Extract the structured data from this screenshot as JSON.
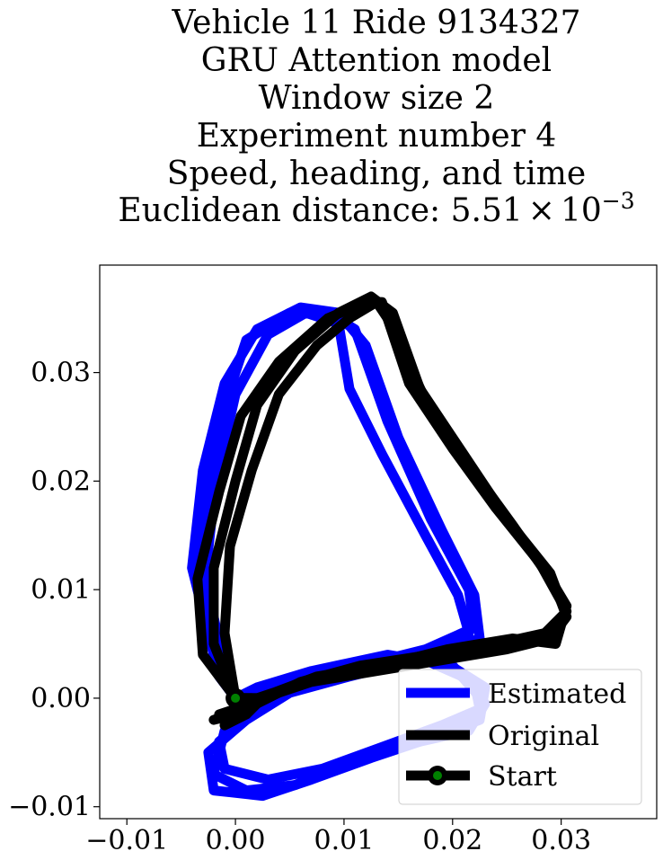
{
  "chart_data": {
    "type": "line",
    "title_lines": [
      "Vehicle 11 Ride 9134327",
      "GRU Attention model",
      "Window size 2",
      "Experiment number 4",
      "Speed, heading, and time"
    ],
    "title_distance_prefix": "Euclidean distance: ",
    "title_distance_mantissa": "5.51",
    "title_distance_times": "×",
    "title_distance_base": "10",
    "title_distance_exponent": "−3",
    "xlabel": "",
    "ylabel": "",
    "xlim": [
      -0.0125,
      0.0388
    ],
    "ylim": [
      -0.0111,
      0.0399
    ],
    "x_ticks": [
      -0.01,
      0.0,
      0.01,
      0.02,
      0.03
    ],
    "x_tick_labels": [
      "−0.01",
      "0.00",
      "0.01",
      "0.02",
      "0.03"
    ],
    "y_ticks": [
      -0.01,
      0.0,
      0.01,
      0.02,
      0.03
    ],
    "y_tick_labels": [
      "−0.01",
      "0.00",
      "0.01",
      "0.02",
      "0.03"
    ],
    "grid": false,
    "legend_position": "bottom-right",
    "series": [
      {
        "name": "Estimated",
        "color": "#0000ff",
        "loops": [
          [
            [
              0.0,
              0.0
            ],
            [
              -0.0015,
              0.002
            ],
            [
              -0.0033,
              0.01
            ],
            [
              -0.0025,
              0.019
            ],
            [
              -0.001,
              0.027
            ],
            [
              0.001,
              0.033
            ],
            [
              0.005,
              0.0355
            ],
            [
              0.0085,
              0.0355
            ],
            [
              0.011,
              0.034
            ],
            [
              0.014,
              0.0255
            ],
            [
              0.018,
              0.0165
            ],
            [
              0.0215,
              0.01
            ],
            [
              0.022,
              0.0065
            ],
            [
              0.0175,
              0.0045
            ],
            [
              0.0115,
              0.003
            ],
            [
              0.006,
              0.0015
            ],
            [
              0.002,
              -0.001
            ],
            [
              -0.001,
              -0.003
            ],
            [
              -0.002,
              -0.007
            ],
            [
              0.001,
              -0.0085
            ],
            [
              0.0055,
              -0.008
            ],
            [
              0.011,
              -0.0055
            ],
            [
              0.017,
              -0.004
            ],
            [
              0.0215,
              -0.003
            ],
            [
              0.023,
              -0.0005
            ],
            [
              0.02,
              0.003
            ],
            [
              0.014,
              0.004
            ],
            [
              0.007,
              0.0025
            ],
            [
              0.002,
              0.001
            ],
            [
              0.0,
              0.0
            ]
          ],
          [
            [
              0.0,
              0.0
            ],
            [
              -0.002,
              0.004
            ],
            [
              -0.004,
              0.012
            ],
            [
              -0.003,
              0.021
            ],
            [
              -0.001,
              0.029
            ],
            [
              0.002,
              0.034
            ],
            [
              0.006,
              0.036
            ],
            [
              0.0095,
              0.0355
            ],
            [
              0.012,
              0.0325
            ],
            [
              0.015,
              0.024
            ],
            [
              0.019,
              0.0155
            ],
            [
              0.022,
              0.0095
            ],
            [
              0.0225,
              0.0055
            ],
            [
              0.0165,
              0.0035
            ],
            [
              0.0105,
              0.002
            ],
            [
              0.005,
              0.0005
            ],
            [
              0.001,
              -0.002
            ],
            [
              -0.0025,
              -0.005
            ],
            [
              -0.002,
              -0.0085
            ],
            [
              0.0025,
              -0.009
            ],
            [
              0.007,
              -0.0075
            ],
            [
              0.0125,
              -0.0055
            ],
            [
              0.0185,
              -0.0035
            ],
            [
              0.0225,
              -0.002
            ],
            [
              0.023,
              0.001
            ],
            [
              0.019,
              0.0035
            ],
            [
              0.0125,
              0.0035
            ],
            [
              0.006,
              0.0015
            ],
            [
              0.0015,
              0.0005
            ],
            [
              0.0,
              0.0
            ]
          ],
          [
            [
              0.0,
              0.0
            ],
            [
              -0.001,
              0.003
            ],
            [
              -0.0028,
              0.011
            ],
            [
              -0.0018,
              0.02
            ],
            [
              0.0,
              0.028
            ],
            [
              0.003,
              0.0335
            ],
            [
              0.0065,
              0.0355
            ],
            [
              0.0095,
              0.0345
            ],
            [
              0.0105,
              0.0285
            ],
            [
              0.0135,
              0.0225
            ],
            [
              0.0175,
              0.015
            ],
            [
              0.0205,
              0.0095
            ],
            [
              0.0215,
              0.006
            ],
            [
              0.017,
              0.004
            ],
            [
              0.011,
              0.0025
            ],
            [
              0.0055,
              0.001
            ],
            [
              0.0015,
              -0.0015
            ],
            [
              -0.0015,
              -0.004
            ],
            [
              -0.001,
              -0.0065
            ],
            [
              0.003,
              -0.0075
            ],
            [
              0.008,
              -0.0065
            ],
            [
              0.0135,
              -0.0045
            ],
            [
              0.019,
              -0.0025
            ],
            [
              0.0225,
              -0.001
            ],
            [
              0.022,
              0.0015
            ],
            [
              0.0175,
              0.0035
            ],
            [
              0.011,
              0.003
            ],
            [
              0.005,
              0.0015
            ],
            [
              0.001,
              0.0
            ],
            [
              0.0,
              0.0
            ]
          ]
        ]
      },
      {
        "name": "Original",
        "color": "#000000",
        "loops": [
          [
            [
              0.0,
              0.0
            ],
            [
              -0.002,
              0.005
            ],
            [
              -0.002,
              0.012
            ],
            [
              0.0,
              0.02
            ],
            [
              0.002,
              0.027
            ],
            [
              0.0055,
              0.032
            ],
            [
              0.0095,
              0.0355
            ],
            [
              0.0125,
              0.037
            ],
            [
              0.0145,
              0.0355
            ],
            [
              0.017,
              0.0285
            ],
            [
              0.021,
              0.0225
            ],
            [
              0.025,
              0.0165
            ],
            [
              0.029,
              0.0115
            ],
            [
              0.0305,
              0.0075
            ],
            [
              0.029,
              0.0055
            ],
            [
              0.025,
              0.0045
            ],
            [
              0.019,
              0.0035
            ],
            [
              0.013,
              0.0025
            ],
            [
              0.007,
              0.0015
            ],
            [
              0.0025,
              0.0
            ],
            [
              0.0,
              -0.001
            ],
            [
              -0.0015,
              -0.0015
            ],
            [
              0.0,
              -0.0015
            ],
            [
              0.002,
              0.0
            ],
            [
              0.0,
              0.0
            ]
          ],
          [
            [
              0.0,
              0.0
            ],
            [
              -0.003,
              0.004
            ],
            [
              -0.0035,
              0.011
            ],
            [
              -0.0015,
              0.019
            ],
            [
              0.0005,
              0.026
            ],
            [
              0.004,
              0.031
            ],
            [
              0.0085,
              0.035
            ],
            [
              0.012,
              0.0365
            ],
            [
              0.0135,
              0.0365
            ],
            [
              0.016,
              0.029
            ],
            [
              0.02,
              0.023
            ],
            [
              0.024,
              0.0175
            ],
            [
              0.028,
              0.0125
            ],
            [
              0.0305,
              0.008
            ],
            [
              0.0285,
              0.006
            ],
            [
              0.024,
              0.005
            ],
            [
              0.018,
              0.004
            ],
            [
              0.0115,
              0.003
            ],
            [
              0.006,
              0.0015
            ],
            [
              0.002,
              -0.0005
            ],
            [
              -0.0005,
              -0.0015
            ],
            [
              -0.002,
              -0.002
            ],
            [
              0.0,
              -0.0015
            ],
            [
              0.0015,
              0.0
            ],
            [
              0.0,
              0.0
            ]
          ],
          [
            [
              0.0,
              0.0
            ],
            [
              -0.001,
              0.006
            ],
            [
              -0.0005,
              0.014
            ],
            [
              0.0015,
              0.021
            ],
            [
              0.004,
              0.028
            ],
            [
              0.0075,
              0.0325
            ],
            [
              0.0105,
              0.035
            ],
            [
              0.013,
              0.0365
            ],
            [
              0.014,
              0.035
            ],
            [
              0.0175,
              0.0275
            ],
            [
              0.0215,
              0.0215
            ],
            [
              0.0255,
              0.016
            ],
            [
              0.029,
              0.011
            ],
            [
              0.0305,
              0.0085
            ],
            [
              0.0295,
              0.005
            ],
            [
              0.0255,
              0.0055
            ],
            [
              0.0195,
              0.0045
            ],
            [
              0.0135,
              0.003
            ],
            [
              0.0075,
              0.002
            ],
            [
              0.0035,
              0.0005
            ],
            [
              0.0005,
              -0.0005
            ],
            [
              -0.001,
              -0.0025
            ],
            [
              0.001,
              -0.0015
            ],
            [
              0.0025,
              0.0
            ],
            [
              0.0,
              0.0
            ]
          ]
        ]
      }
    ],
    "start_point": {
      "name": "Start",
      "x": 0.0,
      "y": 0.0,
      "marker_color": "#008000",
      "marker_edge_color": "#000000"
    }
  }
}
